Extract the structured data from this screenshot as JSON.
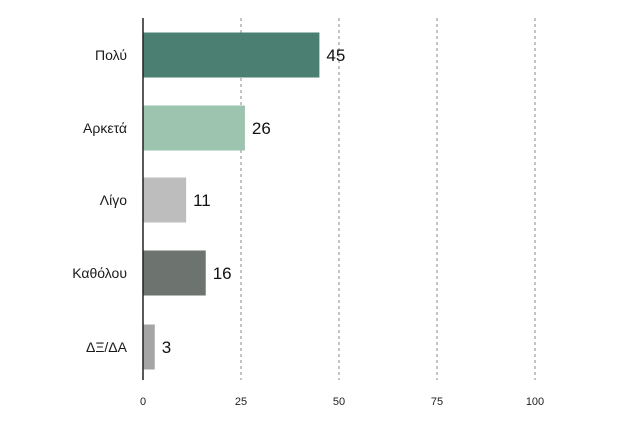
{
  "chart_data": {
    "type": "bar",
    "orientation": "horizontal",
    "categories": [
      "Πολύ",
      "Αρκετά",
      "Λίγο",
      "Καθόλου",
      "ΔΞ/ΔΑ"
    ],
    "values": [
      45,
      26,
      11,
      16,
      3
    ],
    "data_labels": [
      "45",
      "26",
      "11",
      "16",
      "3"
    ],
    "bar_colors": [
      "#4a7f72",
      "#9cc4ae",
      "#bcbdbc",
      "#6d736f",
      "#a5a5a5"
    ],
    "xlim": [
      0,
      100
    ],
    "x_ticks": [
      0,
      25,
      50,
      75,
      100
    ],
    "x_tick_labels": [
      "0",
      "25",
      "50",
      "75",
      "100"
    ],
    "grid": "vertical-dashed",
    "legend": "none",
    "title": "",
    "xlabel": "",
    "ylabel": ""
  }
}
